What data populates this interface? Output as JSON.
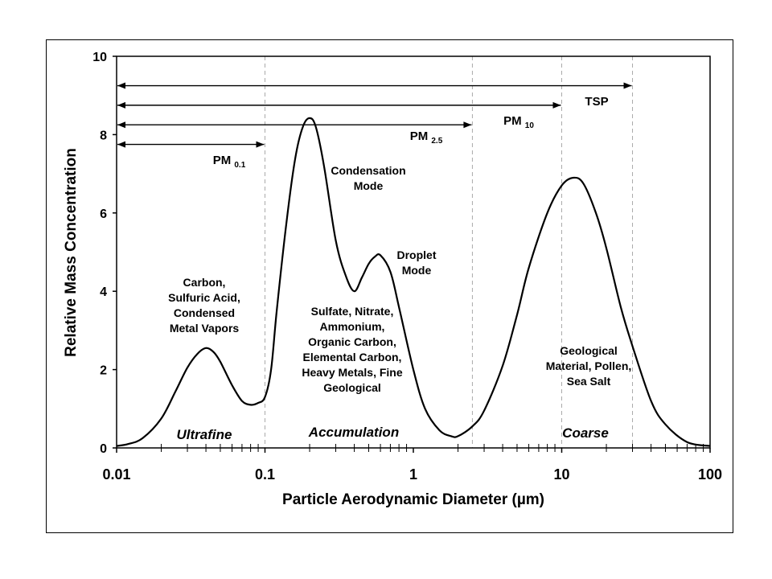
{
  "chart_data": {
    "type": "line",
    "xlabel": "Particle Aerodynamic Diameter (µm)",
    "ylabel": "Relative Mass Concentration",
    "x_scale": "log",
    "xlim": [
      0.01,
      100
    ],
    "ylim": [
      0,
      10
    ],
    "x_ticks": [
      {
        "value": 0.01,
        "label": "0.01"
      },
      {
        "value": 0.1,
        "label": "0.1"
      },
      {
        "value": 1,
        "label": "1"
      },
      {
        "value": 10,
        "label": "10"
      },
      {
        "value": 100,
        "label": "100"
      }
    ],
    "y_ticks": [
      {
        "value": 0,
        "label": "0"
      },
      {
        "value": 2,
        "label": "2"
      },
      {
        "value": 4,
        "label": "4"
      },
      {
        "value": 6,
        "label": "6"
      },
      {
        "value": 8,
        "label": "8"
      },
      {
        "value": 10,
        "label": "10"
      }
    ],
    "series": [
      {
        "x": [
          0.01,
          0.012,
          0.015,
          0.02,
          0.025,
          0.03,
          0.035,
          0.04,
          0.045,
          0.05,
          0.06,
          0.07,
          0.08,
          0.09,
          0.1,
          0.11,
          0.12,
          0.14,
          0.16,
          0.18,
          0.2,
          0.22,
          0.25,
          0.3,
          0.35,
          0.4,
          0.45,
          0.5,
          0.55,
          0.6,
          0.7,
          0.8,
          1.0,
          1.2,
          1.5,
          1.8,
          2.0,
          2.5,
          3.0,
          4.0,
          5.0,
          6.0,
          8.0,
          10,
          12,
          14,
          17,
          20,
          25,
          30,
          40,
          50,
          70,
          100
        ],
        "y": [
          0.05,
          0.1,
          0.25,
          0.75,
          1.45,
          2.05,
          2.4,
          2.55,
          2.45,
          2.2,
          1.6,
          1.2,
          1.1,
          1.15,
          1.3,
          2.0,
          3.5,
          5.8,
          7.4,
          8.2,
          8.42,
          8.2,
          7.2,
          5.3,
          4.4,
          4.0,
          4.35,
          4.7,
          4.88,
          4.92,
          4.5,
          3.6,
          2.0,
          1.0,
          0.45,
          0.3,
          0.3,
          0.55,
          0.95,
          2.1,
          3.4,
          4.6,
          6.0,
          6.7,
          6.9,
          6.75,
          6.0,
          5.1,
          3.6,
          2.6,
          1.2,
          0.6,
          0.15,
          0.05
        ]
      }
    ],
    "ranges": [
      {
        "label": "PM ",
        "sub": "0.1",
        "x_start": 0.01,
        "x_end": 0.1,
        "y": 7.75
      },
      {
        "label": "PM ",
        "sub": "2.5",
        "x_start": 0.01,
        "x_end": 2.5,
        "y": 8.25
      },
      {
        "label": "PM ",
        "sub": "10",
        "x_start": 0.01,
        "x_end": 10,
        "y": 8.75
      },
      {
        "label": "TSP",
        "sub": "",
        "x_start": 0.01,
        "x_end": 30,
        "y": 9.25
      }
    ],
    "boundaries": [
      0.1,
      2.5,
      10,
      30
    ],
    "mode_labels": [
      "Ultrafine",
      "Accumulation",
      "Coarse"
    ],
    "annotations": [
      [
        "Carbon,",
        "Sulfuric Acid,",
        "Condensed",
        "Metal Vapors"
      ],
      [
        "Condensation",
        "Mode"
      ],
      [
        "Droplet",
        "Mode"
      ],
      [
        "Sulfate, Nitrate,",
        "Ammonium,",
        "Organic Carbon,",
        "Elemental Carbon,",
        "Heavy Metals, Fine",
        "Geological"
      ],
      [
        "Geological",
        "Material, Pollen,",
        "Sea Salt"
      ]
    ]
  }
}
